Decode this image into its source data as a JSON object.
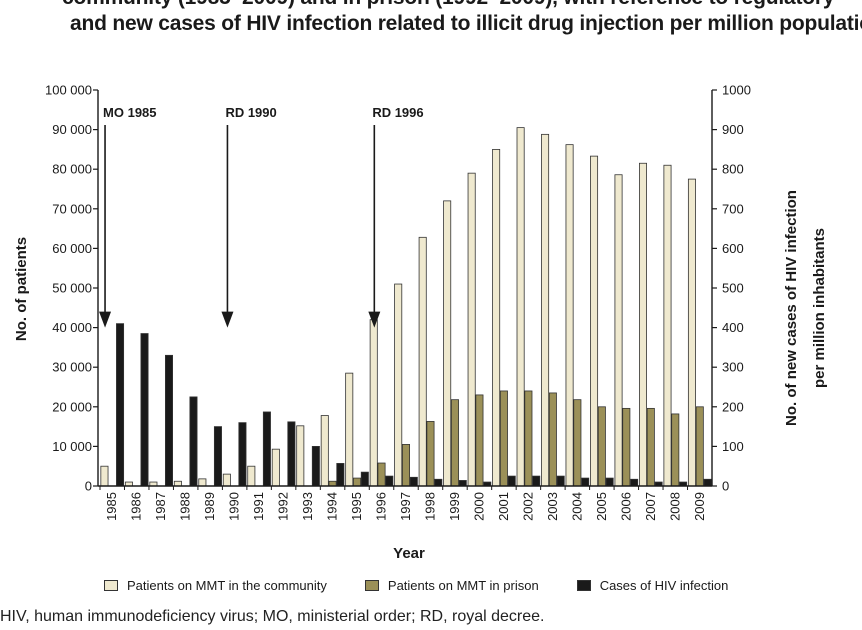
{
  "title_lines": [
    "community (1985–2009) and in prison (1992–2009), with reference to regulatory",
    "and new cases of HIV infection related to illicit drug injection per million populatio"
  ],
  "footnote": "HIV, human immunodeficiency virus; MO, ministerial order; RD, royal decree.",
  "chart_data": {
    "type": "bar",
    "xlabel": "Year",
    "ylabel_left": "No. of patients",
    "ylabel_right_lines": [
      "No. of new cases of HIV infection",
      "per million inhabitants"
    ],
    "ylim_left": [
      0,
      100000
    ],
    "ylim_right": [
      0,
      1000
    ],
    "yticks_left": [
      "0",
      "10 000",
      "20 000",
      "30 000",
      "40 000",
      "50 000",
      "60 000",
      "70 000",
      "80 000",
      "90 000",
      "100 000"
    ],
    "yticks_right": [
      "0",
      "100",
      "200",
      "300",
      "400",
      "500",
      "600",
      "700",
      "800",
      "900",
      "1000"
    ],
    "categories": [
      "1985",
      "1986",
      "1987",
      "1988",
      "1989",
      "1990",
      "1991",
      "1992",
      "1993",
      "1994",
      "1995",
      "1996",
      "1997",
      "1998",
      "1999",
      "2000",
      "2001",
      "2002",
      "2003",
      "2004",
      "2005",
      "2006",
      "2007",
      "2008",
      "2009"
    ],
    "series": [
      {
        "name": "Patients on MMT in the community",
        "axis": "left",
        "color": "#efe9cf",
        "values": [
          5000,
          1000,
          1000,
          1200,
          1800,
          3000,
          5000,
          9300,
          15200,
          17800,
          28500,
          42000,
          51000,
          62800,
          72000,
          79000,
          85000,
          90500,
          88800,
          86200,
          83300,
          78600,
          81500,
          81000,
          77500
        ]
      },
      {
        "name": "Patients on MMT in prison",
        "axis": "left",
        "color": "#9b9058",
        "values": [
          0,
          0,
          0,
          0,
          0,
          0,
          0,
          0,
          0,
          1200,
          2000,
          5800,
          10500,
          16300,
          21800,
          23000,
          24000,
          24000,
          23500,
          21800,
          20000,
          19600,
          19600,
          18200,
          20000
        ]
      },
      {
        "name": "Cases of HIV infection",
        "axis": "right",
        "color": "#1a1a1a",
        "values": [
          410,
          385,
          330,
          225,
          150,
          160,
          187,
          162,
          100,
          57,
          35,
          25,
          22,
          17,
          14,
          10,
          25,
          25,
          25,
          20,
          20,
          17,
          10,
          10,
          17
        ]
      }
    ],
    "annotations": [
      {
        "label": "MO 1985",
        "year": "1985",
        "arrow_to": 40000
      },
      {
        "label": "RD 1990",
        "year": "1990",
        "arrow_to": 40000
      },
      {
        "label": "RD 1996",
        "year": "1996",
        "arrow_to": 40000
      }
    ]
  }
}
